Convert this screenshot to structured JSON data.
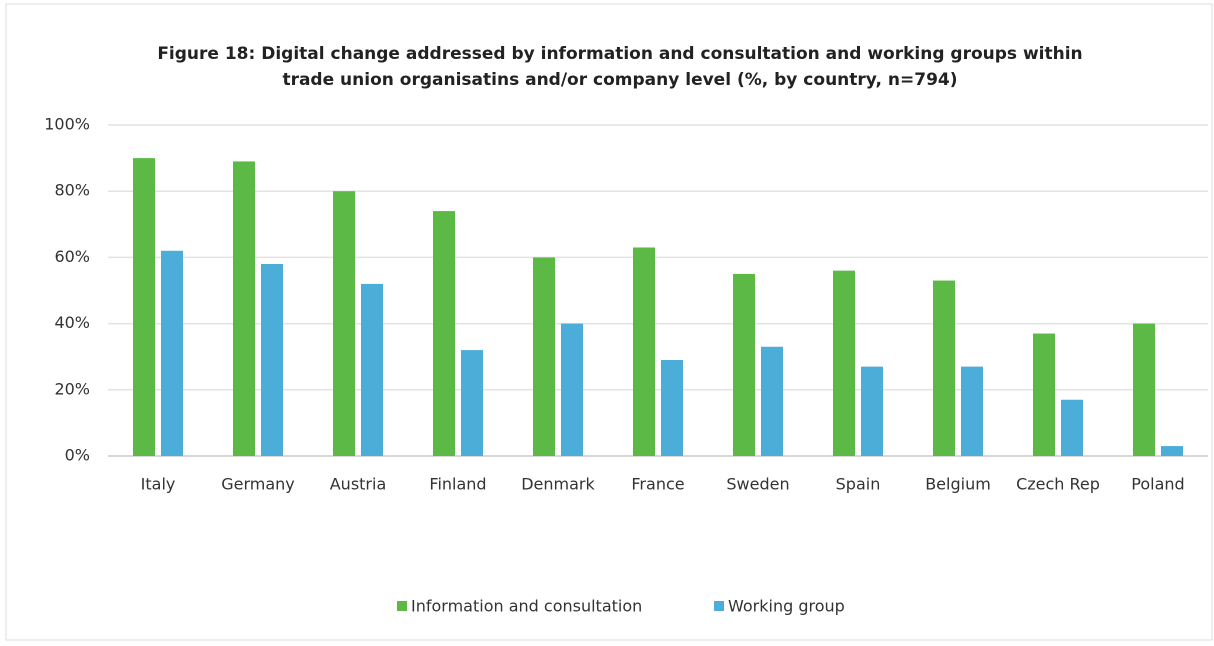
{
  "chart_data": {
    "type": "bar",
    "title": [
      "Figure 18: Digital change addressed by information and consultation and working groups within",
      "trade union organisatins and/or company level (%, by country, n=794)"
    ],
    "categories": [
      "Italy",
      "Germany",
      "Austria",
      "Finland",
      "Denmark",
      "France",
      "Sweden",
      "Spain",
      "Belgium",
      "Czech Rep",
      "Poland"
    ],
    "series": [
      {
        "name": "Information and consultation",
        "color": "#5cb946",
        "values": [
          90,
          89,
          80,
          74,
          60,
          63,
          55,
          56,
          53,
          37,
          40
        ]
      },
      {
        "name": "Working group",
        "color": "#4badd8",
        "values": [
          62,
          58,
          52,
          32,
          40,
          29,
          33,
          27,
          27,
          17,
          3
        ]
      }
    ],
    "ylim": [
      0,
      100
    ],
    "yticks": [
      {
        "value": 0,
        "label": "0%"
      },
      {
        "value": 20,
        "label": "20%"
      },
      {
        "value": 40,
        "label": "40%"
      },
      {
        "value": 60,
        "label": "60%"
      },
      {
        "value": 80,
        "label": "80%"
      },
      {
        "value": 100,
        "label": "100%"
      }
    ],
    "grid": true,
    "legend": "bottom"
  }
}
